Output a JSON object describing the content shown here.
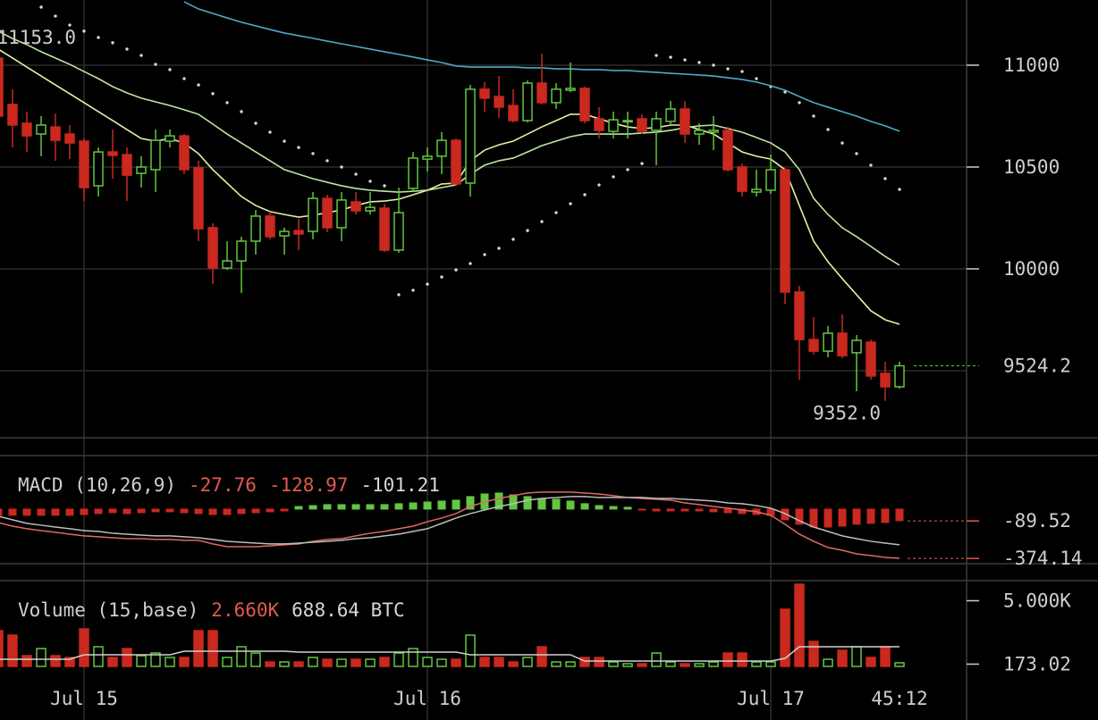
{
  "chart_data": [
    {
      "type": "candlestick",
      "categories": [
        null,
        null,
        null,
        null,
        null,
        null,
        "Jul 15",
        null,
        null,
        null,
        null,
        null,
        null,
        null,
        null,
        null,
        null,
        null,
        null,
        null,
        null,
        null,
        null,
        null,
        null,
        null,
        null,
        null,
        null,
        null,
        "Jul 16",
        null,
        null,
        null,
        null,
        null,
        null,
        null,
        null,
        null,
        null,
        null,
        null,
        null,
        null,
        null,
        null,
        null,
        null,
        null,
        null,
        null,
        null,
        null,
        "Jul 17",
        null,
        null,
        null,
        null,
        null,
        null,
        null,
        null,
        null
      ],
      "open": [
        11035,
        10807,
        10715,
        10662,
        10697,
        10662,
        10627,
        10408,
        10574,
        10561,
        10469,
        10487,
        10627,
        10653,
        10496,
        10202,
        10004,
        10039,
        10136,
        10259,
        10162,
        10188,
        10184,
        10346,
        10202,
        10329,
        10285,
        10298,
        10092,
        10395,
        10539,
        10553,
        10631,
        10421,
        10882,
        10846,
        10802,
        10728,
        10912,
        10816,
        10877,
        10886,
        10737,
        10675,
        10724,
        10737,
        10680,
        10724,
        10785,
        10662,
        10671,
        10680,
        10500,
        10377,
        10386,
        10487,
        9886,
        9653,
        9596,
        9684,
        9588,
        9640,
        9487,
        9421
      ],
      "high": [
        11153,
        10882,
        10772,
        10750,
        10763,
        10706,
        10640,
        10596,
        10684,
        10596,
        10553,
        10684,
        10684,
        10662,
        10531,
        10224,
        10136,
        10158,
        10289,
        10281,
        10202,
        10245,
        10377,
        10364,
        10377,
        10377,
        10377,
        10320,
        10399,
        10574,
        10596,
        10671,
        10640,
        10903,
        10917,
        10947,
        10882,
        10925,
        11057,
        10912,
        11013,
        10895,
        10794,
        10772,
        10772,
        10759,
        10772,
        10824,
        10824,
        10715,
        10750,
        10697,
        10517,
        10487,
        10561,
        10496,
        9917,
        9763,
        9719,
        9776,
        9675,
        9653,
        9544,
        9544
      ],
      "low": [
        10720,
        10596,
        10574,
        10553,
        10531,
        10539,
        10333,
        10355,
        10443,
        10333,
        10399,
        10377,
        10596,
        10465,
        10136,
        9925,
        9995,
        9881,
        10070,
        10145,
        10070,
        10092,
        10145,
        10180,
        10136,
        10267,
        10267,
        10083,
        10079,
        10377,
        10478,
        10465,
        10408,
        10355,
        10772,
        10741,
        10719,
        10719,
        10807,
        10785,
        10868,
        10715,
        10640,
        10640,
        10640,
        10662,
        10509,
        10706,
        10618,
        10609,
        10583,
        10478,
        10355,
        10355,
        10368,
        9829,
        9456,
        9579,
        9566,
        9561,
        9399,
        9456,
        9352,
        9412
      ],
      "close": [
        10750,
        10706,
        10653,
        10706,
        10631,
        10618,
        10399,
        10574,
        10557,
        10460,
        10500,
        10631,
        10653,
        10487,
        10197,
        10004,
        10039,
        10136,
        10259,
        10158,
        10184,
        10171,
        10346,
        10202,
        10338,
        10285,
        10302,
        10092,
        10276,
        10544,
        10553,
        10631,
        10417,
        10882,
        10838,
        10794,
        10728,
        10912,
        10816,
        10882,
        10886,
        10728,
        10680,
        10732,
        10728,
        10675,
        10737,
        10785,
        10662,
        10680,
        10680,
        10487,
        10381,
        10390,
        10487,
        9886,
        9653,
        9596,
        9684,
        9574,
        9649,
        9474,
        9421,
        9524.2
      ],
      "up_color": "#63c640",
      "down_color": "#c9291e",
      "series": [
        {
          "color": "#e6eea6",
          "values": [
            11079,
            11035,
            10991,
            10947,
            10903,
            10860,
            10816,
            10772,
            10728,
            10684,
            10640,
            10627,
            10640,
            10618,
            10566,
            10487,
            10421,
            10355,
            10311,
            10281,
            10267,
            10254,
            10263,
            10276,
            10289,
            10311,
            10329,
            10333,
            10342,
            10364,
            10386,
            10417,
            10421,
            10531,
            10583,
            10609,
            10627,
            10662,
            10697,
            10728,
            10759,
            10759,
            10737,
            10715,
            10697,
            10689,
            10693,
            10706,
            10706,
            10684,
            10662,
            10618,
            10574,
            10553,
            10539,
            10487,
            10311,
            10136,
            10035,
            9952,
            9873,
            9794,
            9750,
            9728
          ]
        },
        {
          "color": "#bfe6a2",
          "values": [
            11167,
            11131,
            11101,
            11066,
            11035,
            11004,
            10969,
            10934,
            10895,
            10864,
            10838,
            10820,
            10802,
            10781,
            10759,
            10711,
            10662,
            10618,
            10574,
            10531,
            10487,
            10465,
            10443,
            10425,
            10408,
            10395,
            10386,
            10381,
            10377,
            10381,
            10386,
            10399,
            10412,
            10465,
            10509,
            10531,
            10544,
            10574,
            10605,
            10627,
            10649,
            10662,
            10662,
            10662,
            10662,
            10667,
            10671,
            10680,
            10693,
            10702,
            10706,
            10689,
            10671,
            10645,
            10618,
            10574,
            10487,
            10346,
            10267,
            10202,
            10158,
            10110,
            10061,
            10018
          ]
        },
        {
          "color": "#4ea9c9",
          "values": [
            null,
            null,
            null,
            null,
            null,
            null,
            null,
            null,
            null,
            null,
            null,
            null,
            null,
            11311,
            11276,
            11254,
            11232,
            11211,
            11193,
            11175,
            11158,
            11145,
            11132,
            11118,
            11105,
            11092,
            11079,
            11066,
            11053,
            11040,
            11026,
            11013,
            10996,
            10991,
            10991,
            10991,
            10991,
            10987,
            10987,
            10982,
            10982,
            10978,
            10978,
            10974,
            10974,
            10969,
            10965,
            10960,
            10956,
            10952,
            10947,
            10938,
            10930,
            10917,
            10899,
            10877,
            10846,
            10816,
            10794,
            10772,
            10750,
            10724,
            10702,
            10676
          ]
        }
      ],
      "sar": {
        "color": "#d8d8d8",
        "values": [
          null,
          null,
          null,
          11285,
          11241,
          11197,
          11167,
          11136,
          11110,
          11079,
          11048,
          11004,
          10978,
          10934,
          10903,
          10860,
          10816,
          10772,
          10715,
          10671,
          10627,
          10596,
          10566,
          10531,
          10500,
          10465,
          10430,
          10408,
          9873,
          9895,
          9925,
          9960,
          9995,
          10026,
          10070,
          10101,
          10145,
          10188,
          10232,
          10276,
          10320,
          10364,
          10412,
          10452,
          10487,
          10517,
          11048,
          11039,
          11026,
          11013,
          11000,
          10982,
          10969,
          10934,
          10895,
          10868,
          10816,
          10750,
          10684,
          10618,
          10566,
          10509,
          10443,
          10390
        ]
      },
      "ylim": [
        9171,
        11320
      ],
      "yticks": [
        10000,
        10500,
        11000
      ],
      "ygrid": [
        9500,
        10000,
        10500,
        11000
      ],
      "tick_color": "#cfcfcf",
      "last_price": {
        "value": 9524.2,
        "label": "9524.2"
      },
      "high_label": {
        "value": 11153,
        "label": "11153.0"
      },
      "low_label": {
        "value": 9352,
        "label": "9352.0"
      },
      "countdown": "45:12"
    },
    {
      "type": "macd",
      "title": "MACD (10,26,9)",
      "readouts": [
        {
          "value": -27.76,
          "color": "#e05a50"
        },
        {
          "value": -128.97,
          "color": "#e05a50"
        },
        {
          "value": -101.21,
          "color": "#d6d6d6"
        }
      ],
      "histogram": [
        -47,
        -47,
        -47,
        -47,
        -47,
        -47,
        -41,
        -34,
        -27,
        -34,
        -27,
        -20,
        -20,
        -27,
        -34,
        -41,
        -41,
        -34,
        -27,
        -20,
        -14,
        20,
        27,
        34,
        34,
        34,
        34,
        34,
        41,
        47,
        54,
        61,
        68,
        95,
        115,
        122,
        108,
        95,
        81,
        75,
        61,
        41,
        27,
        20,
        14,
        -7,
        -14,
        -14,
        -14,
        -14,
        -20,
        -27,
        -34,
        -41,
        -47,
        -81,
        -115,
        -136,
        -136,
        -129,
        -115,
        -108,
        -102,
        -88
      ],
      "up_color": "#63c640",
      "down_color": "#c9291e",
      "series": [
        {
          "color": "#e06a62",
          "values": [
            -102,
            -129,
            -149,
            -163,
            -176,
            -190,
            -203,
            -210,
            -217,
            -224,
            -224,
            -230,
            -230,
            -237,
            -237,
            -264,
            -285,
            -285,
            -285,
            -278,
            -271,
            -264,
            -244,
            -230,
            -224,
            -203,
            -183,
            -169,
            -149,
            -129,
            -95,
            -68,
            -34,
            20,
            54,
            81,
            102,
            122,
            129,
            129,
            129,
            122,
            115,
            102,
            88,
            81,
            75,
            68,
            47,
            34,
            20,
            7,
            -7,
            -20,
            -47,
            -115,
            -190,
            -244,
            -291,
            -312,
            -339,
            -352,
            -366,
            -373
          ]
        },
        {
          "color": "#bdbdbd",
          "values": [
            -54,
            -81,
            -108,
            -122,
            -136,
            -149,
            -163,
            -169,
            -183,
            -190,
            -197,
            -203,
            -203,
            -210,
            -217,
            -230,
            -244,
            -251,
            -258,
            -264,
            -264,
            -258,
            -251,
            -244,
            -237,
            -224,
            -217,
            -203,
            -190,
            -169,
            -149,
            -108,
            -68,
            -34,
            -7,
            20,
            41,
            68,
            81,
            88,
            95,
            95,
            88,
            88,
            88,
            88,
            81,
            81,
            75,
            68,
            61,
            47,
            41,
            27,
            7,
            -34,
            -88,
            -136,
            -169,
            -203,
            -224,
            -244,
            -258,
            -271
          ]
        }
      ],
      "ylim": [
        -407,
        406
      ],
      "yticks": [
        -89.52,
        -374.14
      ],
      "tick_color": "#e05a50"
    },
    {
      "type": "volume",
      "title": "Volume (15,base)",
      "readouts": [
        {
          "value": 2660,
          "label": "2.660K",
          "color": "#e05a50"
        },
        {
          "value": 688.64,
          "label": "688.64 BTC",
          "color": "#d6d6d6"
        }
      ],
      "values": [
        2720,
        2380,
        816,
        1360,
        816,
        680,
        2856,
        1496,
        680,
        1360,
        816,
        1020,
        680,
        680,
        2720,
        2720,
        680,
        1496,
        1020,
        340,
        340,
        340,
        680,
        544,
        544,
        544,
        544,
        680,
        1020,
        1360,
        680,
        544,
        544,
        2380,
        680,
        680,
        340,
        680,
        1496,
        340,
        340,
        680,
        680,
        340,
        204,
        204,
        1020,
        340,
        204,
        204,
        340,
        1020,
        1020,
        340,
        340,
        4352,
        6256,
        1904,
        544,
        1224,
        1496,
        680,
        1496,
        272
      ],
      "ma": {
        "color": "#d0d0d0",
        "values": [
          544,
          544,
          544,
          544,
          544,
          544,
          884,
          884,
          884,
          884,
          884,
          884,
          884,
          1156,
          1156,
          1156,
          1156,
          1156,
          1156,
          1156,
          1156,
          1088,
          1088,
          1088,
          1088,
          1088,
          1088,
          1088,
          1088,
          1088,
          1088,
          1088,
          1088,
          884,
          884,
          884,
          884,
          884,
          884,
          884,
          884,
          408,
          408,
          408,
          408,
          408,
          408,
          408,
          408,
          408,
          408,
          408,
          408,
          408,
          408,
          612,
          1496,
          1496,
          1496,
          1496,
          1496,
          1496,
          1496,
          1496
        ]
      },
      "ylim": [
        -272,
        6392
      ],
      "yticks": [
        {
          "value": 5000,
          "label": "5.000K"
        },
        173.02
      ],
      "tick_color": "#cfcfcf"
    }
  ]
}
